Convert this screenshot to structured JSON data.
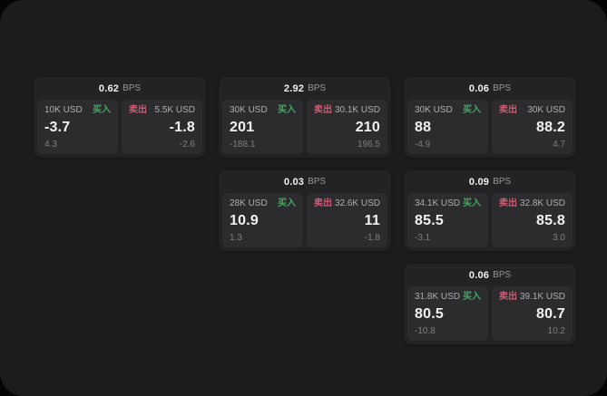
{
  "labels": {
    "buy": "买入",
    "sell": "卖出",
    "bps_unit": "BPS"
  },
  "colors": {
    "page_bg": "#1c1c1e",
    "card_bg": "#232326",
    "panel_bg": "#2c2c2f",
    "buy": "#46a862",
    "sell": "#d15a73"
  },
  "cards": [
    {
      "bps": "0.62",
      "buy": {
        "size": "10K USD",
        "value": "-3.7",
        "sub": "4.3"
      },
      "sell": {
        "size": "5.5K USD",
        "value": "-1.8",
        "sub": "-2.6"
      }
    },
    {
      "bps": "2.92",
      "buy": {
        "size": "30K USD",
        "value": "201",
        "sub": "-188.1"
      },
      "sell": {
        "size": "30.1K USD",
        "value": "210",
        "sub": "196.5"
      }
    },
    {
      "bps": "0.06",
      "buy": {
        "size": "30K USD",
        "value": "88",
        "sub": "-4.9"
      },
      "sell": {
        "size": "30K USD",
        "value": "88.2",
        "sub": "4.7"
      }
    },
    {
      "bps": "0.03",
      "buy": {
        "size": "28K USD",
        "value": "10.9",
        "sub": "1.3"
      },
      "sell": {
        "size": "32.6K USD",
        "value": "11",
        "sub": "-1.8"
      }
    },
    {
      "bps": "0.09",
      "buy": {
        "size": "34.1K USD",
        "value": "85.5",
        "sub": "-3.1"
      },
      "sell": {
        "size": "32.8K USD",
        "value": "85.8",
        "sub": "3.0"
      }
    },
    {
      "bps": "0.06",
      "buy": {
        "size": "31.8K USD",
        "value": "80.5",
        "sub": "-10.8"
      },
      "sell": {
        "size": "39.1K USD",
        "value": "80.7",
        "sub": "10.2"
      }
    }
  ]
}
